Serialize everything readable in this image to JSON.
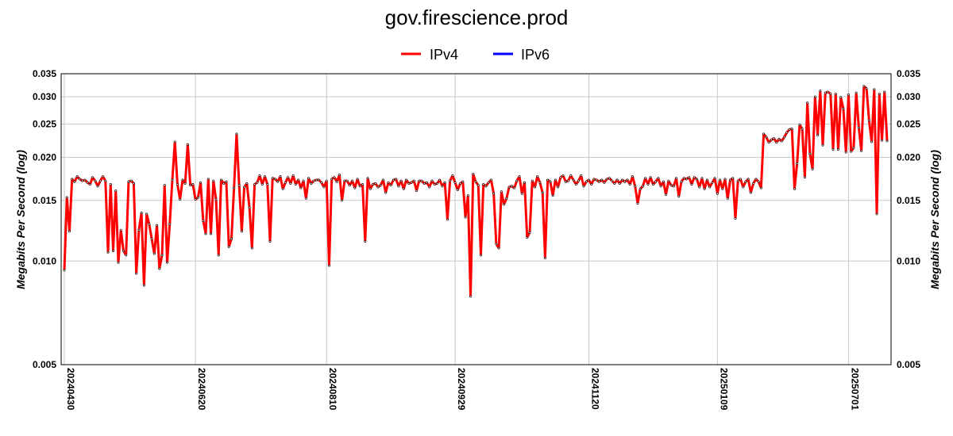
{
  "chart_data": {
    "type": "line",
    "title": "gov.firescience.prod",
    "ylabel": "Megabits Per Second (log)",
    "xlabel": "",
    "yscale": "log",
    "ylim": [
      0.005,
      0.035
    ],
    "yticks": [
      0.005,
      0.01,
      0.015,
      0.02,
      0.025,
      0.03,
      0.035
    ],
    "ytick_labels": [
      "0.005",
      "0.010",
      "0.015",
      "0.020",
      "0.025",
      "0.030",
      "0.035"
    ],
    "xticks": [
      {
        "label": "20240430",
        "index": 0
      },
      {
        "label": "20240620",
        "index": 51
      },
      {
        "label": "20240810",
        "index": 102
      },
      {
        "label": "20240929",
        "index": 152
      },
      {
        "label": "20241120",
        "index": 204
      },
      {
        "label": "20250109",
        "index": 254
      },
      {
        "label": "20250701",
        "index": 305
      }
    ],
    "grid": true,
    "legend_position": "top-center",
    "series": [
      {
        "name": "IPv4",
        "color": "#ff0000",
        "values": [
          0.0094,
          0.0153,
          0.0122,
          0.0173,
          0.017,
          0.0176,
          0.0173,
          0.0171,
          0.0172,
          0.0169,
          0.0167,
          0.0175,
          0.0171,
          0.0165,
          0.0171,
          0.0176,
          0.0171,
          0.0106,
          0.0167,
          0.0107,
          0.016,
          0.0099,
          0.0123,
          0.0107,
          0.0104,
          0.017,
          0.0171,
          0.0168,
          0.0092,
          0.0123,
          0.0138,
          0.0085,
          0.0137,
          0.0128,
          0.0116,
          0.0105,
          0.0127,
          0.0095,
          0.0104,
          0.0166,
          0.0099,
          0.0128,
          0.0172,
          0.0222,
          0.0167,
          0.0151,
          0.0172,
          0.0168,
          0.0218,
          0.0166,
          0.0167,
          0.0151,
          0.0153,
          0.0169,
          0.0131,
          0.012,
          0.0173,
          0.012,
          0.0171,
          0.0151,
          0.0104,
          0.0172,
          0.0168,
          0.017,
          0.011,
          0.0116,
          0.0163,
          0.0234,
          0.0166,
          0.0122,
          0.0164,
          0.0168,
          0.0143,
          0.0109,
          0.0167,
          0.0169,
          0.0177,
          0.0167,
          0.0176,
          0.0167,
          0.0114,
          0.0174,
          0.0173,
          0.017,
          0.0176,
          0.0162,
          0.0169,
          0.0175,
          0.0168,
          0.0177,
          0.0167,
          0.0172,
          0.0163,
          0.0171,
          0.0152,
          0.0174,
          0.0168,
          0.0171,
          0.0172,
          0.0172,
          0.0169,
          0.0164,
          0.0171,
          0.0097,
          0.0173,
          0.0175,
          0.017,
          0.0178,
          0.015,
          0.0171,
          0.0171,
          0.0166,
          0.0171,
          0.0163,
          0.0173,
          0.0165,
          0.0167,
          0.0114,
          0.0174,
          0.0162,
          0.0167,
          0.0168,
          0.0164,
          0.0166,
          0.0172,
          0.0158,
          0.0169,
          0.0166,
          0.0172,
          0.0173,
          0.0165,
          0.0171,
          0.0162,
          0.0172,
          0.0168,
          0.0169,
          0.0171,
          0.016,
          0.0171,
          0.0171,
          0.0168,
          0.0169,
          0.0164,
          0.0171,
          0.0167,
          0.0168,
          0.0172,
          0.0165,
          0.0169,
          0.0132,
          0.0171,
          0.0177,
          0.0169,
          0.0161,
          0.0168,
          0.017,
          0.0134,
          0.0155,
          0.0079,
          0.0179,
          0.017,
          0.0166,
          0.0104,
          0.0167,
          0.0165,
          0.0169,
          0.0172,
          0.0157,
          0.0112,
          0.0109,
          0.0159,
          0.0146,
          0.0152,
          0.0164,
          0.0165,
          0.0163,
          0.0171,
          0.0176,
          0.0157,
          0.0169,
          0.0117,
          0.0121,
          0.0171,
          0.0164,
          0.0176,
          0.0169,
          0.0158,
          0.0102,
          0.0172,
          0.017,
          0.0155,
          0.0172,
          0.0164,
          0.0175,
          0.0177,
          0.017,
          0.0171,
          0.0177,
          0.0172,
          0.0167,
          0.0171,
          0.0177,
          0.0165,
          0.017,
          0.0172,
          0.0167,
          0.0173,
          0.0172,
          0.017,
          0.0172,
          0.0169,
          0.0173,
          0.0174,
          0.0171,
          0.0168,
          0.0172,
          0.0168,
          0.0172,
          0.017,
          0.0172,
          0.0167,
          0.0176,
          0.0165,
          0.0147,
          0.0162,
          0.0165,
          0.0174,
          0.0167,
          0.0175,
          0.0167,
          0.017,
          0.0174,
          0.0165,
          0.017,
          0.0156,
          0.0171,
          0.0166,
          0.0165,
          0.0174,
          0.0154,
          0.017,
          0.0174,
          0.0173,
          0.0175,
          0.0167,
          0.0175,
          0.0173,
          0.0164,
          0.0174,
          0.0162,
          0.0172,
          0.0164,
          0.0169,
          0.0174,
          0.0157,
          0.0172,
          0.0162,
          0.0173,
          0.0152,
          0.0172,
          0.0174,
          0.0133,
          0.0171,
          0.0173,
          0.0164,
          0.017,
          0.0173,
          0.0158,
          0.0168,
          0.0173,
          0.017,
          0.0163,
          0.0234,
          0.0229,
          0.0221,
          0.0225,
          0.0227,
          0.0221,
          0.0226,
          0.0223,
          0.0229,
          0.0236,
          0.0241,
          0.0242,
          0.0162,
          0.0192,
          0.0249,
          0.0242,
          0.0175,
          0.0288,
          0.0205,
          0.0185,
          0.03,
          0.0232,
          0.0312,
          0.0217,
          0.0308,
          0.031,
          0.0306,
          0.0211,
          0.0306,
          0.0211,
          0.0299,
          0.0277,
          0.0207,
          0.0304,
          0.0208,
          0.0213,
          0.0308,
          0.0244,
          0.0209,
          0.0322,
          0.0317,
          0.0256,
          0.0222,
          0.0315,
          0.0137,
          0.0306,
          0.0224,
          0.031,
          0.0223
        ]
      },
      {
        "name": "IPv6",
        "color": "#0000ff",
        "values": []
      }
    ]
  }
}
